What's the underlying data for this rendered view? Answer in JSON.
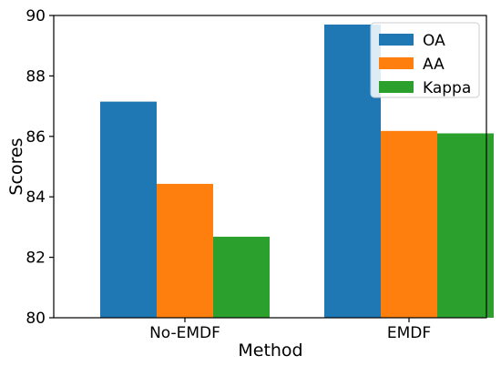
{
  "chart_data": {
    "type": "bar",
    "title": "",
    "xlabel": "Method",
    "ylabel": "Scores",
    "categories": [
      "No-EMDF",
      "EMDF"
    ],
    "series": [
      {
        "name": "OA",
        "values": [
          87.15,
          89.7
        ],
        "color": "#1f77b4"
      },
      {
        "name": "AA",
        "values": [
          84.43,
          86.18
        ],
        "color": "#ff7f0e"
      },
      {
        "name": "Kappa",
        "values": [
          82.68,
          86.1
        ],
        "color": "#2ca02c"
      }
    ],
    "ylim": [
      80,
      90
    ],
    "yticks": [
      "80",
      "82",
      "84",
      "86",
      "88",
      "90"
    ],
    "grid": false,
    "legend_position": "top-right"
  }
}
